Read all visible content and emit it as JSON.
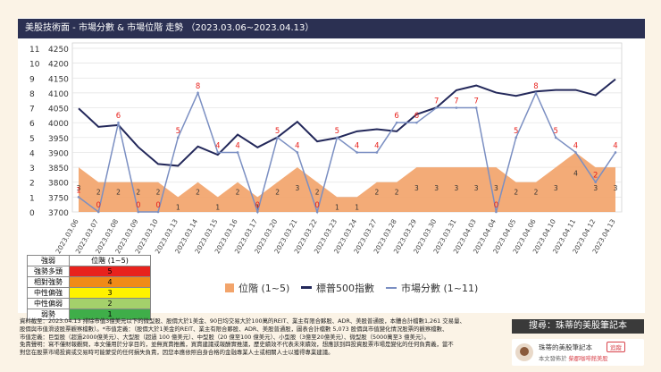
{
  "header": {
    "title": "美股技術面 - 市場分數 & 市場位階 走勢 （2023.03.06~2023.04.13）"
  },
  "chart_data": {
    "type": "line",
    "categories": [
      "2023.03.06",
      "2023.03.07",
      "2023.03.08",
      "2023.03.09",
      "2023.03.10",
      "2023.03.13",
      "2023.03.14",
      "2023.03.15",
      "2023.03.16",
      "2023.03.17",
      "2023.03.20",
      "2023.03.21",
      "2023.03.22",
      "2023.03.23",
      "2023.03.24",
      "2023.03.27",
      "2023.03.28",
      "2023.03.29",
      "2023.03.30",
      "2023.03.31",
      "2023.04.03",
      "2023.04.04",
      "2023.04.05",
      "2023.04.06",
      "2023.04.10",
      "2023.04.11",
      "2023.04.12",
      "2023.04.13"
    ],
    "series": [
      {
        "name": "位階 (1~5)",
        "type": "area",
        "color": "#f2a46b",
        "values": [
          3,
          2,
          2,
          2,
          2,
          1,
          2,
          1,
          2,
          1,
          2,
          3,
          2,
          1,
          1,
          2,
          2,
          3,
          3,
          3,
          3,
          3,
          2,
          2,
          3,
          4,
          3,
          3
        ]
      },
      {
        "name": "標普500指數",
        "type": "line",
        "axis": "right",
        "color": "#23285a",
        "values": [
          4048,
          3986,
          3992,
          3918,
          3861,
          3855,
          3920,
          3892,
          3960,
          3917,
          3951,
          4003,
          3937,
          3949,
          3971,
          3978,
          3971,
          4028,
          4051,
          4109,
          4125,
          4101,
          4090,
          4105,
          4110,
          4110,
          4092,
          4146
        ]
      },
      {
        "name": "市場分數 (1~11)",
        "type": "line",
        "axis": "left",
        "color": "#7b8fc2",
        "values": [
          1,
          0,
          6,
          0,
          0,
          5,
          8,
          4,
          4,
          0,
          5,
          4,
          0,
          5,
          4,
          4,
          6,
          6,
          7,
          7,
          7,
          0,
          5,
          8,
          5,
          4,
          2,
          4
        ]
      }
    ],
    "y_left": {
      "min": 0,
      "max": 11,
      "ticks": [
        0,
        1,
        2,
        3,
        4,
        5,
        6,
        7,
        8,
        9,
        10,
        11
      ]
    },
    "y_right": {
      "min": 3700,
      "max": 4250,
      "ticks": [
        3700,
        3750,
        3800,
        3850,
        3900,
        3950,
        4000,
        4050,
        4100,
        4150,
        4200,
        4250
      ]
    },
    "grid": true,
    "legend_position": "bottom"
  },
  "rating_table": {
    "headers": [
      "強弱",
      "位階 (1~5)"
    ],
    "rows": [
      {
        "label": "強勢多頭",
        "value": "5",
        "color": "#e8221d"
      },
      {
        "label": "相對強勢",
        "value": "4",
        "color": "#f08a17"
      },
      {
        "label": "中性偏強",
        "value": "3",
        "color": "#fff200"
      },
      {
        "label": "中性偏弱",
        "value": "2",
        "color": "#a4d06b"
      },
      {
        "label": "弱勢",
        "value": "1",
        "color": "#3fae49"
      }
    ]
  },
  "legend": {
    "position_label": "位階 (1~5)",
    "sp500_label": "標普500指數",
    "score_label": "市場分數 (1~11)"
  },
  "footer": {
    "lines": [
      "資料截至：2023.04.13 排除市值3億美元以下的微型股、股價大於1美金、90日均交易大於100萬的REIT、業主有限合夥股、ADR、美股普通股，本體合計檔數1,261 交易量、",
      "股價與市值滑波股票觀察檔數）。*市值定義：（股價大於1美金的REIT、業主有限合夥股、ADR、美股普通股，圖表合計檔數 5,073 股價與市值變化情況股票的觀察檔數、",
      "市值定義：巨型股（超過2000億美元）、大型股（超過 100 億美元）、中型股（20 億至100 億美元）、小型股（3億至20億美元）、微型股（5000萬至3 億美元）。",
      "免責聲明：寫不僅財報觀問，本文僅用於分享目的，並無買賣推薦，買賣建議或報酬實推議，歷史績效不代表未來績效，想應該到四投資股票市場是變化的任何負責義，當不",
      "對您在股票市場投資或交易時可能蒙受的任何損失負責，因您本應依照自身合格的金融專業人士或相關人士以獲得專業建議。"
    ]
  },
  "brand": {
    "search_label": "搜尋：珠蒂的美股筆記本",
    "account_name": "珠蒂的美股筆記本",
    "follow_label": "追蹤",
    "sub_prefix": "本文發佈於",
    "sub_link": "柴郡咖啡館美股"
  }
}
